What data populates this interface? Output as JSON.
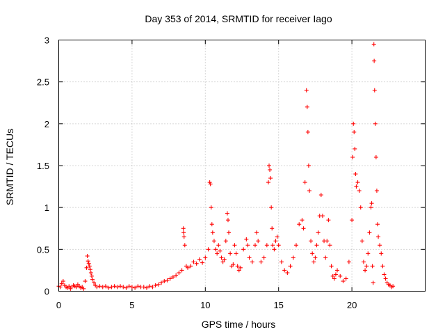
{
  "chart_data": {
    "type": "scatter",
    "title": "Day 353 of 2014, SRMTID for receiver Iago",
    "xlabel": "GPS time / hours",
    "ylabel": "SRMTID / TECUs",
    "xlim": [
      0,
      25
    ],
    "ylim": [
      0,
      3
    ],
    "xticks": [
      0,
      5,
      10,
      15,
      20
    ],
    "yticks": [
      0,
      0.5,
      1,
      1.5,
      2,
      2.5,
      3
    ],
    "xtick_labels": [
      "0",
      "5",
      "10",
      "15",
      "20"
    ],
    "ytick_labels": [
      "0",
      "0.5",
      "1",
      "1.5",
      "2",
      "2.5",
      "3"
    ],
    "grid": true,
    "marker": "+",
    "color": "#ff0000",
    "series": [
      {
        "name": "SRMTID",
        "points": [
          [
            0.0,
            0.06
          ],
          [
            0.1,
            0.05
          ],
          [
            0.2,
            0.09
          ],
          [
            0.3,
            0.12
          ],
          [
            0.4,
            0.07
          ],
          [
            0.5,
            0.05
          ],
          [
            0.6,
            0.04
          ],
          [
            0.7,
            0.06
          ],
          [
            0.8,
            0.03
          ],
          [
            0.9,
            0.05
          ],
          [
            1.0,
            0.07
          ],
          [
            1.1,
            0.06
          ],
          [
            1.2,
            0.05
          ],
          [
            1.3,
            0.08
          ],
          [
            1.4,
            0.06
          ],
          [
            1.5,
            0.04
          ],
          [
            1.6,
            0.05
          ],
          [
            1.7,
            0.03
          ],
          [
            1.8,
            0.12
          ],
          [
            1.9,
            0.28
          ],
          [
            1.95,
            0.42
          ],
          [
            2.0,
            0.36
          ],
          [
            2.05,
            0.33
          ],
          [
            2.1,
            0.3
          ],
          [
            2.15,
            0.26
          ],
          [
            2.2,
            0.22
          ],
          [
            2.25,
            0.18
          ],
          [
            2.3,
            0.14
          ],
          [
            2.4,
            0.1
          ],
          [
            2.5,
            0.07
          ],
          [
            2.6,
            0.05
          ],
          [
            2.8,
            0.06
          ],
          [
            3.0,
            0.05
          ],
          [
            3.2,
            0.06
          ],
          [
            3.4,
            0.04
          ],
          [
            3.6,
            0.05
          ],
          [
            3.8,
            0.06
          ],
          [
            4.0,
            0.05
          ],
          [
            4.2,
            0.06
          ],
          [
            4.4,
            0.05
          ],
          [
            4.6,
            0.04
          ],
          [
            4.8,
            0.06
          ],
          [
            5.0,
            0.05
          ],
          [
            5.2,
            0.04
          ],
          [
            5.4,
            0.06
          ],
          [
            5.6,
            0.05
          ],
          [
            5.8,
            0.05
          ],
          [
            6.0,
            0.04
          ],
          [
            6.2,
            0.06
          ],
          [
            6.4,
            0.05
          ],
          [
            6.6,
            0.07
          ],
          [
            6.8,
            0.08
          ],
          [
            7.0,
            0.1
          ],
          [
            7.2,
            0.12
          ],
          [
            7.4,
            0.13
          ],
          [
            7.6,
            0.15
          ],
          [
            7.8,
            0.17
          ],
          [
            8.0,
            0.19
          ],
          [
            8.2,
            0.22
          ],
          [
            8.4,
            0.25
          ],
          [
            8.5,
            0.75
          ],
          [
            8.52,
            0.7
          ],
          [
            8.55,
            0.65
          ],
          [
            8.6,
            0.55
          ],
          [
            8.7,
            0.3
          ],
          [
            8.8,
            0.28
          ],
          [
            9.0,
            0.3
          ],
          [
            9.2,
            0.35
          ],
          [
            9.4,
            0.33
          ],
          [
            9.6,
            0.38
          ],
          [
            9.8,
            0.34
          ],
          [
            10.0,
            0.4
          ],
          [
            10.2,
            0.5
          ],
          [
            10.3,
            1.3
          ],
          [
            10.35,
            1.28
          ],
          [
            10.4,
            1.0
          ],
          [
            10.45,
            0.8
          ],
          [
            10.5,
            0.7
          ],
          [
            10.6,
            0.6
          ],
          [
            10.7,
            0.5
          ],
          [
            10.8,
            0.45
          ],
          [
            10.9,
            0.55
          ],
          [
            11.0,
            0.48
          ],
          [
            11.1,
            0.4
          ],
          [
            11.2,
            0.35
          ],
          [
            11.3,
            0.38
          ],
          [
            11.4,
            0.6
          ],
          [
            11.5,
            0.93
          ],
          [
            11.55,
            0.85
          ],
          [
            11.6,
            0.7
          ],
          [
            11.7,
            0.45
          ],
          [
            11.8,
            0.3
          ],
          [
            11.9,
            0.32
          ],
          [
            12.0,
            0.55
          ],
          [
            12.1,
            0.45
          ],
          [
            12.2,
            0.3
          ],
          [
            12.3,
            0.25
          ],
          [
            12.4,
            0.28
          ],
          [
            12.6,
            0.5
          ],
          [
            12.8,
            0.62
          ],
          [
            12.9,
            0.55
          ],
          [
            13.0,
            0.4
          ],
          [
            13.2,
            0.35
          ],
          [
            13.4,
            0.55
          ],
          [
            13.5,
            0.7
          ],
          [
            13.6,
            0.6
          ],
          [
            13.8,
            0.35
          ],
          [
            14.0,
            0.4
          ],
          [
            14.2,
            0.55
          ],
          [
            14.3,
            1.3
          ],
          [
            14.35,
            1.5
          ],
          [
            14.4,
            1.45
          ],
          [
            14.45,
            1.35
          ],
          [
            14.5,
            1.0
          ],
          [
            14.55,
            0.75
          ],
          [
            14.6,
            0.55
          ],
          [
            14.7,
            0.5
          ],
          [
            14.8,
            0.6
          ],
          [
            14.9,
            0.65
          ],
          [
            15.0,
            0.55
          ],
          [
            15.2,
            0.35
          ],
          [
            15.4,
            0.25
          ],
          [
            15.6,
            0.22
          ],
          [
            15.8,
            0.3
          ],
          [
            16.0,
            0.4
          ],
          [
            16.2,
            0.55
          ],
          [
            16.4,
            0.8
          ],
          [
            16.6,
            0.85
          ],
          [
            16.7,
            0.75
          ],
          [
            16.8,
            1.3
          ],
          [
            16.9,
            2.4
          ],
          [
            16.95,
            2.2
          ],
          [
            17.0,
            1.9
          ],
          [
            17.05,
            1.5
          ],
          [
            17.1,
            1.2
          ],
          [
            17.2,
            0.6
          ],
          [
            17.3,
            0.45
          ],
          [
            17.4,
            0.35
          ],
          [
            17.5,
            0.4
          ],
          [
            17.6,
            0.55
          ],
          [
            17.7,
            0.7
          ],
          [
            17.8,
            0.9
          ],
          [
            17.9,
            1.15
          ],
          [
            18.0,
            0.9
          ],
          [
            18.1,
            0.6
          ],
          [
            18.2,
            0.4
          ],
          [
            18.3,
            0.6
          ],
          [
            18.4,
            0.85
          ],
          [
            18.5,
            0.55
          ],
          [
            18.6,
            0.3
          ],
          [
            18.7,
            0.18
          ],
          [
            18.8,
            0.15
          ],
          [
            18.9,
            0.2
          ],
          [
            19.0,
            0.25
          ],
          [
            19.2,
            0.18
          ],
          [
            19.4,
            0.12
          ],
          [
            19.6,
            0.15
          ],
          [
            19.8,
            0.35
          ],
          [
            20.0,
            0.85
          ],
          [
            20.05,
            1.6
          ],
          [
            20.1,
            2.0
          ],
          [
            20.15,
            1.9
          ],
          [
            20.2,
            1.7
          ],
          [
            20.25,
            1.4
          ],
          [
            20.3,
            1.25
          ],
          [
            20.4,
            1.3
          ],
          [
            20.5,
            1.2
          ],
          [
            20.6,
            1.0
          ],
          [
            20.7,
            0.6
          ],
          [
            20.8,
            0.35
          ],
          [
            20.9,
            0.25
          ],
          [
            21.0,
            0.3
          ],
          [
            21.1,
            0.45
          ],
          [
            21.2,
            0.7
          ],
          [
            21.3,
            1.0
          ],
          [
            21.35,
            1.05
          ],
          [
            21.4,
            0.3
          ],
          [
            21.45,
            0.1
          ],
          [
            21.5,
            2.95
          ],
          [
            21.52,
            2.75
          ],
          [
            21.55,
            2.4
          ],
          [
            21.6,
            2.0
          ],
          [
            21.65,
            1.6
          ],
          [
            21.7,
            1.2
          ],
          [
            21.75,
            0.8
          ],
          [
            21.8,
            0.65
          ],
          [
            21.9,
            0.55
          ],
          [
            22.0,
            0.45
          ],
          [
            22.1,
            0.3
          ],
          [
            22.2,
            0.2
          ],
          [
            22.3,
            0.15
          ],
          [
            22.4,
            0.1
          ],
          [
            22.5,
            0.08
          ],
          [
            22.6,
            0.07
          ],
          [
            22.7,
            0.05
          ],
          [
            22.8,
            0.06
          ]
        ]
      }
    ]
  }
}
